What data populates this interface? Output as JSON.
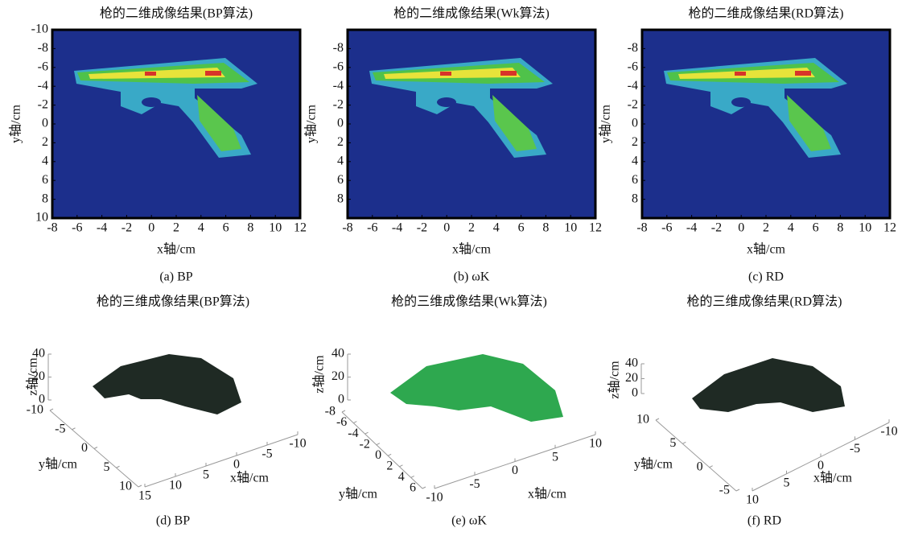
{
  "chart_data": [
    {
      "type": "heatmap",
      "title": "枪的二维成像结果(BP算法)",
      "xlabel": "x轴/cm",
      "ylabel": "y轴/cm",
      "caption": "(a) BP",
      "xlim": [
        -8,
        12
      ],
      "ylim": [
        10,
        -10
      ],
      "xticks": [
        -8,
        -6,
        -4,
        -2,
        0,
        2,
        4,
        6,
        8,
        10,
        12
      ],
      "yticks": [
        -10,
        -8,
        -6,
        -4,
        -2,
        0,
        2,
        4,
        6,
        8,
        10
      ]
    },
    {
      "type": "heatmap",
      "title": "枪的二维成像结果(Wk算法)",
      "xlabel": "x轴/cm",
      "ylabel": "y轴/cm",
      "caption": "(b) ωK",
      "xlim": [
        -8,
        12
      ],
      "ylim": [
        10,
        -10
      ],
      "xticks": [
        -8,
        -6,
        -4,
        -2,
        0,
        2,
        4,
        6,
        8,
        10,
        12
      ],
      "yticks": [
        -8,
        -6,
        -4,
        -2,
        0,
        2,
        4,
        6,
        8
      ]
    },
    {
      "type": "heatmap",
      "title": "枪的二维成像结果(RD算法)",
      "xlabel": "x轴/cm",
      "ylabel": "y轴/cm",
      "caption": "(c) RD",
      "xlim": [
        -8,
        12
      ],
      "ylim": [
        10,
        -10
      ],
      "xticks": [
        -8,
        -6,
        -4,
        -2,
        0,
        2,
        4,
        6,
        8,
        10,
        12
      ],
      "yticks": [
        -8,
        -6,
        -4,
        -2,
        0,
        2,
        4,
        6,
        8
      ]
    },
    {
      "type": "surface3d",
      "title": "枪的三维成像结果(BP算法)",
      "xlabel": "x轴/cm",
      "ylabel": "y轴/cm",
      "zlabel": "z轴/cm",
      "caption": "(d) BP",
      "xlim": [
        15,
        -10
      ],
      "xticks": [
        15,
        10,
        5,
        0,
        -5,
        -10
      ],
      "ylim": [
        -10,
        10
      ],
      "yticks": [
        -10,
        -5,
        0,
        5,
        10
      ],
      "zlim": [
        0,
        40
      ],
      "zticks": [
        0,
        20,
        40
      ]
    },
    {
      "type": "surface3d",
      "title": "枪的三维成像结果(Wk算法)",
      "xlabel": "x轴/cm",
      "ylabel": "y轴/cm",
      "zlabel": "z轴/cm",
      "caption": "(e) ωK",
      "xlim": [
        -10,
        10
      ],
      "xticks": [
        -10,
        -5,
        0,
        5,
        10
      ],
      "ylim": [
        -8,
        6
      ],
      "yticks": [
        -8,
        -6,
        -4,
        -2,
        0,
        2,
        4,
        6
      ],
      "zlim": [
        0,
        40
      ],
      "zticks": [
        0,
        20,
        40
      ]
    },
    {
      "type": "surface3d",
      "title": "枪的三维成像结果(RD算法)",
      "xlabel": "x轴/cm",
      "ylabel": "y轴/cm",
      "zlabel": "z轴/cm",
      "caption": "(f) RD",
      "xlim": [
        10,
        -10
      ],
      "xticks": [
        10,
        5,
        0,
        -5,
        -10
      ],
      "ylim": [
        10,
        -5
      ],
      "yticks": [
        10,
        5,
        0,
        -5
      ],
      "zlim": [
        0,
        40
      ],
      "zticks": [
        0,
        20,
        40
      ]
    }
  ]
}
